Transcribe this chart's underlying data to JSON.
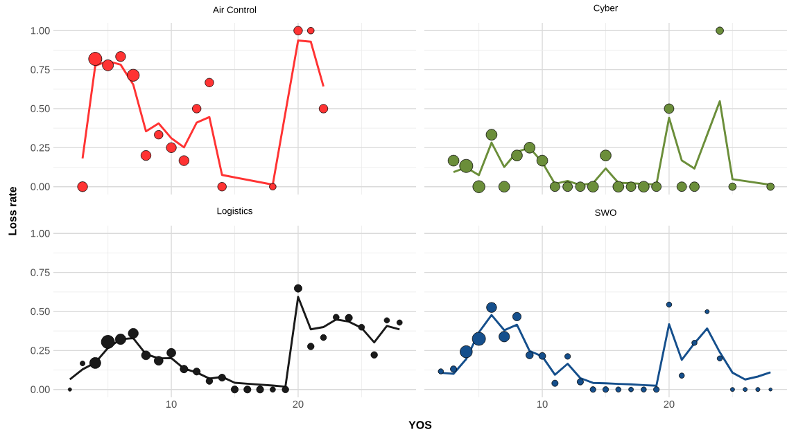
{
  "chart_data": [
    {
      "type": "line",
      "title": "Air Control",
      "xlim": [
        0.7,
        29.3
      ],
      "ylim": [
        -0.05,
        1.05
      ],
      "yticks": [
        {
          "value": 0,
          "label": "0.00"
        },
        {
          "value": 0.25,
          "label": "0.25"
        },
        {
          "value": 0.5,
          "label": "0.50"
        },
        {
          "value": 0.75,
          "label": "0.75"
        },
        {
          "value": 1,
          "label": "1.00"
        }
      ],
      "grid": true,
      "tick_labels": "y",
      "series": [
        {
          "color": "#ff3333",
          "x": [
            3,
            4,
            5,
            6,
            7,
            8,
            9,
            10,
            11,
            12,
            13,
            14,
            18,
            20,
            21,
            22
          ],
          "values": [
            0.181,
            0.775,
            0.804,
            0.782,
            0.654,
            0.355,
            0.406,
            0.311,
            0.252,
            0.411,
            0.446,
            0.075,
            0.013,
            0.937,
            0.929,
            0.642
          ]
        },
        {
          "type": "bubble",
          "color": "#ff3333",
          "marker": "circle",
          "x": [
            3,
            4,
            5,
            6,
            7,
            8,
            9,
            10,
            11,
            12,
            13,
            14,
            18,
            20,
            21,
            22
          ],
          "values": [
            0,
            0.819,
            0.778,
            0.834,
            0.714,
            0.2,
            0.333,
            0.25,
            0.167,
            0.5,
            0.667,
            0,
            0,
            1,
            1,
            0.5
          ],
          "sizes": [
            0.57,
            1,
            0.7,
            0.57,
            0.83,
            0.57,
            0.43,
            0.57,
            0.57,
            0.43,
            0.43,
            0.43,
            0.26,
            0.43,
            0.26,
            0.43
          ]
        }
      ]
    },
    {
      "type": "line",
      "title": "Cyber",
      "xlim": [
        0.7,
        29.3
      ],
      "ylim": [
        -0.05,
        1.05
      ],
      "grid": true,
      "tick_labels": false,
      "series": [
        {
          "color": "#6b8e3a",
          "x": [
            3,
            4,
            5,
            6,
            7,
            8,
            9,
            10,
            11,
            12,
            13,
            14,
            15,
            16,
            17,
            18,
            19,
            20,
            21,
            22,
            24,
            25,
            28
          ],
          "values": [
            0.094,
            0.123,
            0.074,
            0.282,
            0.126,
            0.223,
            0.25,
            0.156,
            0.018,
            0.037,
            0.01,
            0.022,
            0.117,
            0.025,
            0.022,
            0.018,
            0.013,
            0.441,
            0.168,
            0.116,
            0.548,
            0.048,
            0.012
          ]
        },
        {
          "type": "bubble",
          "color": "#6b8e3a",
          "marker": "circle",
          "x": [
            3,
            4,
            5,
            6,
            7,
            8,
            9,
            10,
            11,
            12,
            13,
            14,
            15,
            16,
            17,
            18,
            19,
            20,
            21,
            22,
            24,
            25,
            28
          ],
          "values": [
            0.167,
            0.133,
            0,
            0.333,
            0,
            0.2,
            0.25,
            0.167,
            0,
            0,
            0,
            0,
            0.2,
            0,
            0,
            0,
            0,
            0.5,
            0,
            0,
            1,
            0,
            0
          ],
          "sizes": [
            0.68,
            1,
            0.84,
            0.68,
            0.68,
            0.68,
            0.68,
            0.68,
            0.53,
            0.53,
            0.53,
            0.68,
            0.68,
            0.68,
            0.53,
            0.68,
            0.53,
            0.53,
            0.53,
            0.53,
            0.32,
            0.32,
            0.32
          ]
        }
      ]
    },
    {
      "type": "line",
      "title": "Logistics",
      "xlabel": "YOS",
      "ylabel": "Loss rate",
      "xlim": [
        0.7,
        29.3
      ],
      "ylim": [
        -0.05,
        1.05
      ],
      "xticks": [
        10,
        20
      ],
      "yticks": [
        {
          "value": 0,
          "label": "0.00"
        },
        {
          "value": 0.25,
          "label": "0.25"
        },
        {
          "value": 0.5,
          "label": "0.50"
        },
        {
          "value": 0.75,
          "label": "0.75"
        },
        {
          "value": 1,
          "label": "1.00"
        }
      ],
      "grid": true,
      "series": [
        {
          "color": "#1a1a1a",
          "x": [
            2,
            3,
            4,
            5,
            6,
            7,
            8,
            9,
            10,
            11,
            12,
            13,
            14,
            15,
            16,
            17,
            18,
            19,
            20,
            21,
            22,
            23,
            24,
            25,
            26,
            27,
            28
          ],
          "values": [
            0.065,
            0.129,
            0.172,
            0.266,
            0.322,
            0.329,
            0.226,
            0.2,
            0.201,
            0.134,
            0.109,
            0.07,
            0.081,
            0.043,
            0.037,
            0.031,
            0.025,
            0.018,
            0.593,
            0.386,
            0.4,
            0.449,
            0.435,
            0.395,
            0.302,
            0.407,
            0.385
          ]
        },
        {
          "type": "bubble",
          "color": "#1a1a1a",
          "marker": "circle",
          "x": [
            2,
            3,
            4,
            5,
            6,
            7,
            8,
            9,
            10,
            11,
            12,
            13,
            14,
            15,
            16,
            17,
            18,
            19,
            20,
            21,
            22,
            23,
            24,
            25,
            26,
            27,
            28
          ],
          "values": [
            0,
            0.167,
            0.17,
            0.305,
            0.322,
            0.36,
            0.219,
            0.184,
            0.235,
            0.131,
            0.115,
            0.054,
            0.076,
            0,
            0,
            0,
            0,
            0,
            0.648,
            0.276,
            0.333,
            0.463,
            0.459,
            0.399,
            0.222,
            0.443,
            0.429
          ],
          "sizes": [
            0.07,
            0.14,
            0.7,
            1,
            0.63,
            0.57,
            0.45,
            0.45,
            0.45,
            0.34,
            0.29,
            0.25,
            0.29,
            0.29,
            0.29,
            0.29,
            0.17,
            0.25,
            0.34,
            0.25,
            0.21,
            0.21,
            0.29,
            0.21,
            0.25,
            0.17,
            0.17
          ]
        }
      ]
    },
    {
      "type": "line",
      "title": "SWO",
      "xlim": [
        0.7,
        29.3
      ],
      "ylim": [
        -0.05,
        1.05
      ],
      "xticks": [
        10,
        20
      ],
      "grid": true,
      "tick_labels": "x",
      "series": [
        {
          "color": "#154f8c",
          "x": [
            2,
            3,
            4,
            5,
            6,
            7,
            8,
            9,
            10,
            11,
            12,
            13,
            14,
            15,
            16,
            17,
            18,
            19,
            20,
            21,
            22,
            23,
            24,
            25,
            26,
            27,
            28
          ],
          "values": [
            0.107,
            0.101,
            0.195,
            0.366,
            0.477,
            0.38,
            0.415,
            0.247,
            0.212,
            0.095,
            0.165,
            0.073,
            0.042,
            0.04,
            0.036,
            0.033,
            0.028,
            0.024,
            0.418,
            0.19,
            0.296,
            0.391,
            0.239,
            0.108,
            0.064,
            0.083,
            0.11
          ]
        },
        {
          "type": "bubble",
          "color": "#154f8c",
          "marker": "circle",
          "x": [
            2,
            3,
            4,
            5,
            6,
            7,
            8,
            9,
            10,
            11,
            12,
            13,
            14,
            15,
            16,
            17,
            18,
            19,
            20,
            21,
            22,
            23,
            24,
            25,
            26,
            27,
            28
          ],
          "values": [
            0.116,
            0.131,
            0.242,
            0.325,
            0.526,
            0.339,
            0.467,
            0.22,
            0.215,
            0.04,
            0.212,
            0.049,
            0,
            0,
            0,
            0,
            0,
            0,
            0.544,
            0.089,
            0.299,
            0.499,
            0.199,
            0,
            0,
            0,
            0
          ],
          "sizes": [
            0.16,
            0.23,
            0.85,
            1,
            0.58,
            0.64,
            0.41,
            0.31,
            0.27,
            0.23,
            0.19,
            0.23,
            0.19,
            0.19,
            0.16,
            0.13,
            0.16,
            0.19,
            0.16,
            0.16,
            0.16,
            0.1,
            0.16,
            0.1,
            0.1,
            0.1,
            0.06
          ]
        }
      ]
    }
  ]
}
